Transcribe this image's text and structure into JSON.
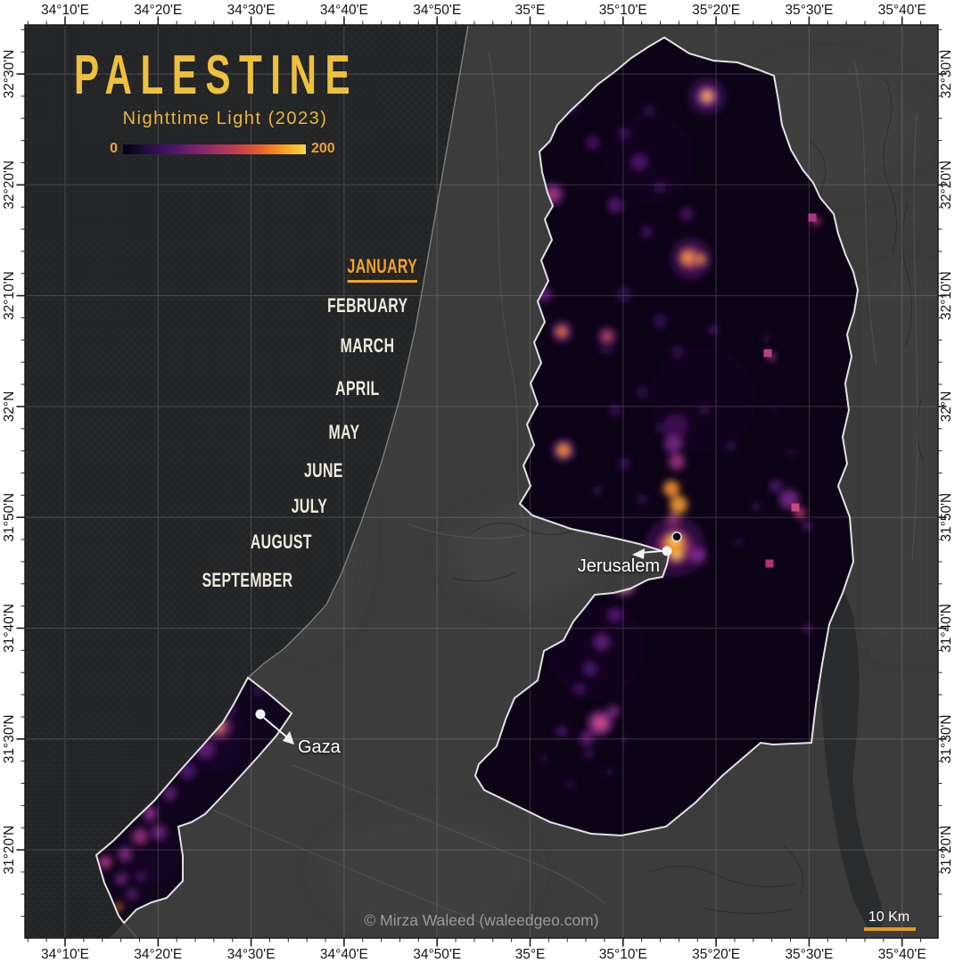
{
  "header": {
    "title": "PALESTINE",
    "subtitle": "Nighttime Light (2023)"
  },
  "legend": {
    "min_label": "0",
    "max_label": "200"
  },
  "months": {
    "active_index": 0,
    "items": [
      "JANUARY",
      "FEBRUARY",
      "MARCH",
      "APRIL",
      "MAY",
      "JUNE",
      "JULY",
      "AUGUST",
      "SEPTEMBER"
    ]
  },
  "map_labels": {
    "jerusalem": "Jerusalem",
    "gaza": "Gaza"
  },
  "credit": "© Mirza Waleed (waleedgeo.com)",
  "scale_bar": {
    "label": "10 Km"
  },
  "axes": {
    "lon": [
      "34°10'E",
      "34°20'E",
      "34°30'E",
      "34°40'E",
      "34°50'E",
      "35°E",
      "35°10'E",
      "35°20'E",
      "35°30'E",
      "35°40'E"
    ],
    "lat": [
      "32°30'N",
      "32°20'N",
      "32°10'N",
      "32°N",
      "31°50'N",
      "31°40'N",
      "31°30'N",
      "31°20'N"
    ]
  },
  "colors": {
    "title_gold": "#eec03b",
    "subtitle_gold": "#e9b637",
    "active_month": "#f6a41f",
    "inactive_month": "#f0eadb",
    "credit_gray": "#9b9b9b",
    "scalebar_orange": "#e09a1e",
    "region_outline": "#e2e2e2",
    "land_gray": "#3c3c3c",
    "sea_dark": "#232527",
    "raster_dark": "#0d0317"
  },
  "lights": {
    "west_bank": [
      [
        700,
        150,
        50,
        "#1c0b33",
        0.3
      ],
      [
        760,
        420,
        60,
        "#190930",
        0.3
      ],
      [
        640,
        700,
        55,
        "#1a0a31",
        0.3
      ],
      [
        765,
        80,
        22,
        "#43125e",
        0.5
      ],
      [
        765,
        80,
        12,
        "#8a2f9e",
        0.75
      ],
      [
        765,
        80,
        6,
        "#f9a23c",
        1
      ],
      [
        747,
        262,
        24,
        "#4c1163",
        0.55
      ],
      [
        747,
        262,
        13,
        "#a13577",
        0.8
      ],
      [
        743,
        261,
        7,
        "#ef8a33",
        1
      ],
      [
        758,
        263,
        5,
        "#f59b33",
        0.85
      ],
      [
        592,
        190,
        12,
        "#7e2b8f",
        0.75
      ],
      [
        592,
        190,
        5,
        "#c2457c",
        0.9
      ],
      [
        582,
        302,
        9,
        "#6b2086",
        0.75
      ],
      [
        602,
        344,
        12,
        "#5c1a7e",
        0.65
      ],
      [
        602,
        344,
        6,
        "#e8742c",
        0.95
      ],
      [
        653,
        349,
        10,
        "#7e2b8f",
        0.65
      ],
      [
        653,
        349,
        5,
        "#d4562f",
        0.85
      ],
      [
        604,
        477,
        13,
        "#5c1a7e",
        0.65
      ],
      [
        604,
        477,
        7,
        "#f08a2e",
        1
      ],
      [
        730,
        450,
        14,
        "#4c1163",
        0.7
      ],
      [
        727,
        470,
        10,
        "#7e2b8f",
        0.8
      ],
      [
        731,
        490,
        9,
        "#a13587",
        0.85
      ],
      [
        725,
        520,
        9,
        "#ee8c2f",
        0.95
      ],
      [
        733,
        538,
        10,
        "#f59b33",
        0.9
      ],
      [
        727,
        556,
        8,
        "#c2457c",
        0.9
      ],
      [
        729,
        585,
        34,
        "#44105c",
        0.55
      ],
      [
        729,
        585,
        20,
        "#a03077",
        0.7
      ],
      [
        728,
        584,
        12,
        "#ef7d2a",
        0.95
      ],
      [
        729,
        578,
        6,
        "#ffd95e",
        1
      ],
      [
        731,
        594,
        5,
        "#ffcf48",
        1
      ],
      [
        755,
        595,
        9,
        "#8a2f9e",
        0.75
      ],
      [
        612,
        92,
        8,
        "#3c0f5a",
        0.8
      ],
      [
        637,
        132,
        8,
        "#4a1468",
        0.8
      ],
      [
        672,
        122,
        7,
        "#3c0f5a",
        0.8
      ],
      [
        689,
        154,
        9,
        "#55187a",
        0.8
      ],
      [
        662,
        202,
        9,
        "#55187a",
        0.8
      ],
      [
        712,
        182,
        7,
        "#3c0f5a",
        0.8
      ],
      [
        742,
        212,
        8,
        "#4a1468",
        0.8
      ],
      [
        700,
        96,
        7,
        "#30094a",
        0.8
      ],
      [
        662,
        27,
        6,
        "#3a0e55",
        0.8
      ],
      [
        697,
        232,
        7,
        "#42115e",
        0.8
      ],
      [
        672,
        302,
        9,
        "#2e0a47",
        0.9
      ],
      [
        712,
        332,
        8,
        "#3a0e55",
        0.8
      ],
      [
        652,
        362,
        8,
        "#30094a",
        0.8
      ],
      [
        732,
        367,
        7,
        "#3a0e55",
        0.8
      ],
      [
        772,
        342,
        6,
        "#4a1468",
        0.8
      ],
      [
        832,
        352,
        5,
        "#30094a",
        0.8
      ],
      [
        692,
        412,
        7,
        "#30094a",
        0.8
      ],
      [
        662,
        432,
        7,
        "#3a0e55",
        0.8
      ],
      [
        712,
        452,
        6,
        "#30094a",
        0.8
      ],
      [
        762,
        432,
        6,
        "#3a0e55",
        0.7
      ],
      [
        792,
        472,
        6,
        "#30094a",
        0.8
      ],
      [
        672,
        492,
        7,
        "#3a0e55",
        0.8
      ],
      [
        642,
        522,
        6,
        "#30094a",
        0.8
      ],
      [
        692,
        532,
        7,
        "#30094a",
        0.8
      ],
      [
        857,
        532,
        11,
        "#7e2b8f",
        0.85
      ],
      [
        869,
        547,
        6,
        "#c13a7c",
        0.95
      ],
      [
        842,
        517,
        7,
        "#55187a",
        0.8
      ],
      [
        877,
        562,
        5,
        "#6b2086",
        0.8
      ],
      [
        650,
        610,
        9,
        "#c2457c",
        0.8
      ],
      [
        672,
        627,
        15,
        "#6b2086",
        0.65
      ],
      [
        672,
        627,
        8,
        "#ef8a33",
        0.9
      ],
      [
        662,
        662,
        8,
        "#5c1a7e",
        0.8
      ],
      [
        647,
        692,
        9,
        "#6b2086",
        0.8
      ],
      [
        634,
        722,
        8,
        "#55187a",
        0.8
      ],
      [
        622,
        745,
        7,
        "#4a1468",
        0.8
      ],
      [
        645,
        783,
        14,
        "#8f2f90",
        0.8
      ],
      [
        645,
        783,
        7,
        "#d44d86",
        0.95
      ],
      [
        630,
        800,
        8,
        "#6b2086",
        0.8
      ],
      [
        660,
        770,
        7,
        "#7e2b8f",
        0.8
      ],
      [
        602,
        792,
        7,
        "#4a1468",
        0.8
      ],
      [
        632,
        817,
        6,
        "#3a0e55",
        0.8
      ],
      [
        582,
        822,
        5,
        "#30094a",
        0.8
      ],
      [
        672,
        802,
        5,
        "#30094a",
        0.8
      ],
      [
        612,
        852,
        5,
        "#3a0e55",
        0.8
      ],
      [
        655,
        838,
        5,
        "#30094a",
        0.8
      ],
      [
        837,
        372,
        5,
        "#8f2f90",
        0.85
      ],
      [
        887,
        220,
        5,
        "#c13a7c",
        0.85
      ],
      [
        877,
        677,
        5,
        "#5c1a7e",
        0.7
      ],
      [
        820,
        540,
        5,
        "#42115e",
        0.8
      ],
      [
        800,
        580,
        5,
        "#30094a",
        0.8
      ],
      [
        860,
        480,
        4,
        "#42115e",
        0.8
      ],
      [
        840,
        430,
        4,
        "#30094a",
        0.8
      ]
    ],
    "gaza": [
      [
        210,
        800,
        40,
        "#1c0b33",
        0.35
      ],
      [
        140,
        930,
        35,
        "#1c0b33",
        0.3
      ],
      [
        217,
        787,
        14,
        "#8f2f90",
        0.6
      ],
      [
        217,
        787,
        7,
        "#d87a3f",
        0.9
      ],
      [
        202,
        812,
        10,
        "#6b2086",
        0.8
      ],
      [
        230,
        767,
        7,
        "#4a1468",
        0.8
      ],
      [
        262,
        747,
        6,
        "#42115e",
        0.8
      ],
      [
        182,
        837,
        9,
        "#55187a",
        0.8
      ],
      [
        162,
        862,
        8,
        "#6b2086",
        0.8
      ],
      [
        140,
        884,
        8,
        "#9a35a0",
        0.8
      ],
      [
        150,
        905,
        8,
        "#7e2b8f",
        0.8
      ],
      [
        129,
        910,
        8,
        "#a13587",
        0.85
      ],
      [
        112,
        930,
        7,
        "#8f2f90",
        0.85
      ],
      [
        90,
        939,
        7,
        "#b23a8c",
        0.9
      ],
      [
        108,
        958,
        6,
        "#7e2b8f",
        0.85
      ],
      [
        105,
        989,
        4,
        "#e8742c",
        1
      ],
      [
        120,
        975,
        6,
        "#6b2086",
        0.8
      ],
      [
        130,
        955,
        5,
        "#55187a",
        0.8
      ]
    ],
    "pixels": [
      [
        835,
        604,
        "#c13a7c"
      ],
      [
        883,
        216,
        "#b23a8c"
      ],
      [
        864,
        541,
        "#d44d86"
      ],
      [
        833,
        368,
        "#c04887"
      ]
    ]
  }
}
